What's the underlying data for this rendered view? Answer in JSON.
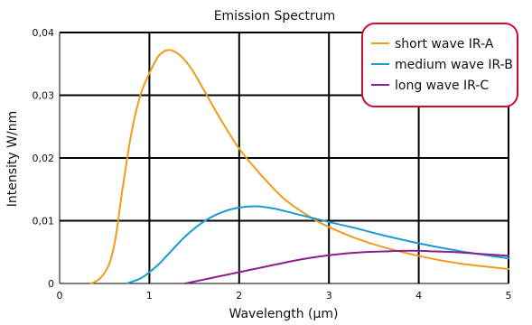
{
  "chart_data": {
    "type": "line",
    "title": "Emission Spectrum",
    "xlabel": "Wavelength (µm)",
    "ylabel": "Intensity W/nm",
    "xlim": [
      0,
      5
    ],
    "ylim": [
      0,
      0.04
    ],
    "xticks": [
      0,
      1,
      2,
      3,
      4,
      5
    ],
    "xtick_labels": [
      "0",
      "1",
      "2",
      "3",
      "4",
      "5"
    ],
    "yticks": [
      0,
      0.01,
      0.02,
      0.03,
      0.04
    ],
    "ytick_labels": [
      "0",
      "0,01",
      "0,02",
      "0,03",
      "0,04"
    ],
    "grid": true,
    "legend_position": "top-right",
    "series": [
      {
        "name": "short wave IR-A",
        "color": "#f39a1b",
        "x": [
          0.35,
          0.45,
          0.55,
          0.62,
          0.7,
          0.8,
          0.9,
          1.0,
          1.1,
          1.2,
          1.3,
          1.4,
          1.5,
          1.6,
          1.8,
          2.0,
          2.2,
          2.5,
          2.8,
          3.0,
          3.3,
          3.6,
          4.0,
          4.4,
          4.8,
          5.0
        ],
        "y": [
          0.0,
          0.0008,
          0.003,
          0.007,
          0.015,
          0.024,
          0.03,
          0.0335,
          0.0362,
          0.0372,
          0.0368,
          0.0355,
          0.0335,
          0.031,
          0.026,
          0.0215,
          0.018,
          0.0135,
          0.0105,
          0.009,
          0.0072,
          0.0058,
          0.0044,
          0.0033,
          0.0026,
          0.0023
        ]
      },
      {
        "name": "medium wave IR-B",
        "color": "#1a9bd7",
        "x": [
          0.75,
          0.9,
          1.0,
          1.1,
          1.2,
          1.4,
          1.6,
          1.8,
          2.0,
          2.2,
          2.4,
          2.6,
          2.8,
          3.0,
          3.3,
          3.6,
          4.0,
          4.4,
          4.8,
          5.0
        ],
        "y": [
          0.0,
          0.0008,
          0.0018,
          0.003,
          0.0045,
          0.0075,
          0.0098,
          0.0113,
          0.0121,
          0.0123,
          0.0119,
          0.0112,
          0.0105,
          0.0098,
          0.0088,
          0.0077,
          0.0064,
          0.0053,
          0.0044,
          0.004
        ]
      },
      {
        "name": "long wave IR-C",
        "color": "#8b1f8e",
        "x": [
          1.4,
          1.6,
          1.8,
          2.0,
          2.2,
          2.4,
          2.6,
          2.8,
          3.0,
          3.2,
          3.4,
          3.6,
          3.8,
          4.0,
          4.2,
          4.4,
          4.6,
          4.8,
          5.0
        ],
        "y": [
          0.0,
          0.0006,
          0.0012,
          0.0018,
          0.0024,
          0.003,
          0.0036,
          0.0041,
          0.0045,
          0.0048,
          0.005,
          0.0051,
          0.0052,
          0.0052,
          0.0051,
          0.005,
          0.0048,
          0.0046,
          0.0044
        ]
      }
    ]
  },
  "colors": {
    "legend_border": "#c8102e",
    "grid": "#000000"
  }
}
